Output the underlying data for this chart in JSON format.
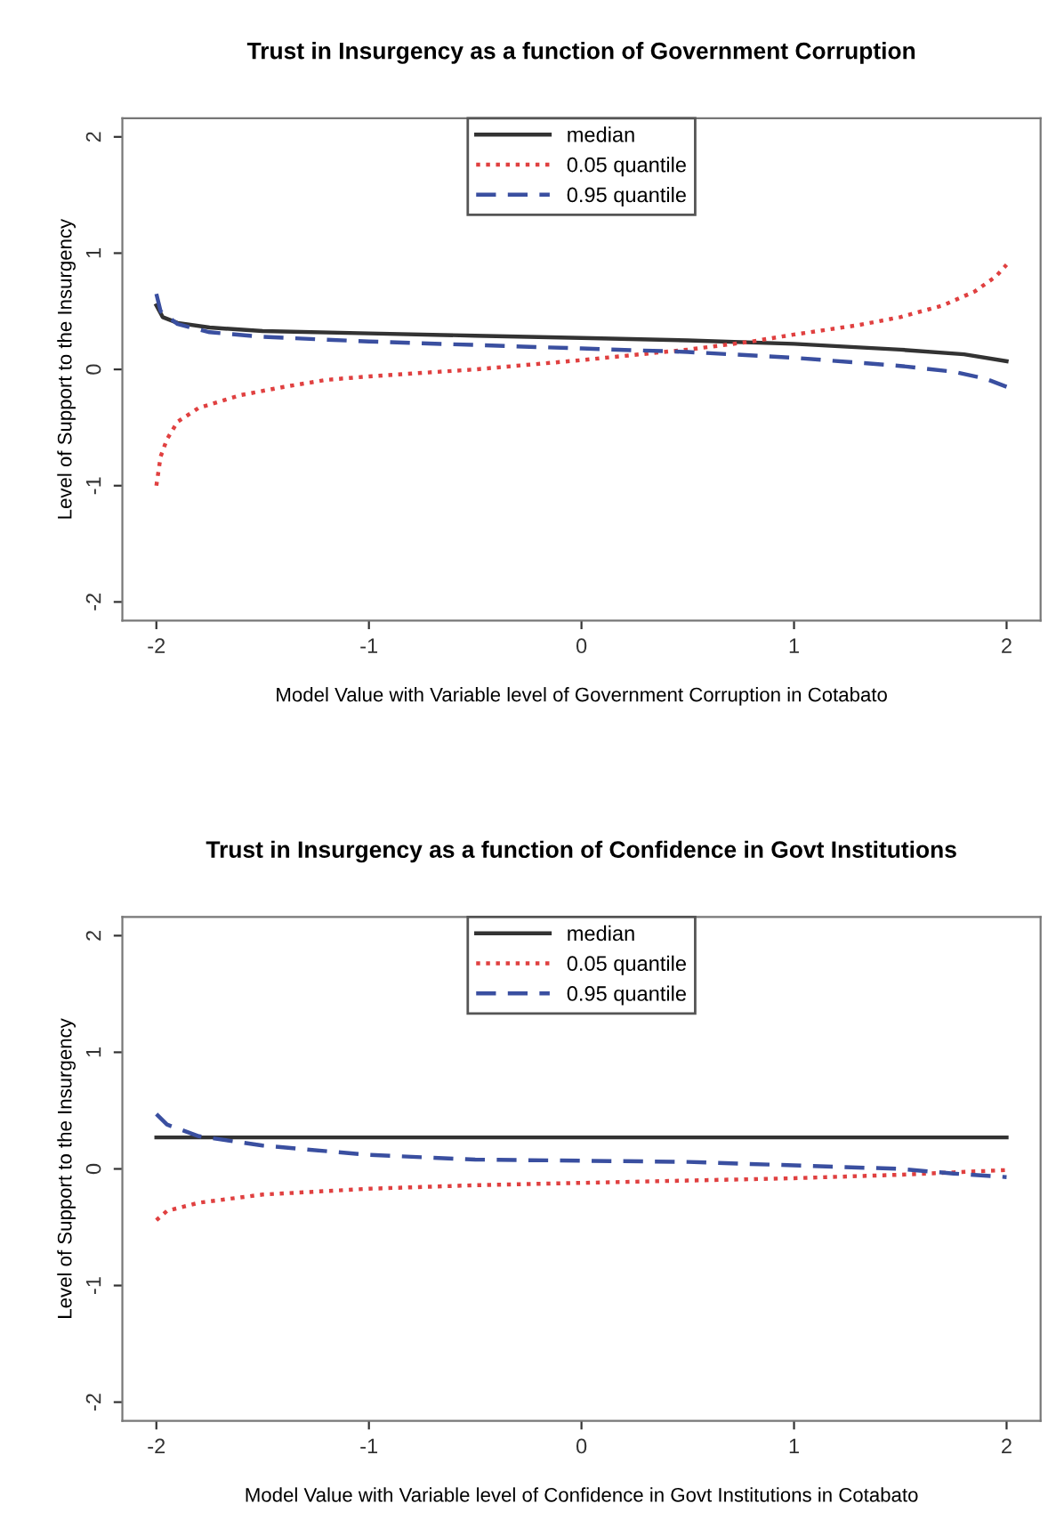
{
  "chart_data": [
    {
      "type": "line",
      "title": "Trust in Insurgency as a function of Government Corruption",
      "xlabel": "Model Value with Variable level of Government Corruption in Cotabato",
      "ylabel": "Level of Support to the Insurgency",
      "xlim": [
        -2.16,
        2.16
      ],
      "ylim": [
        -2.16,
        2.16
      ],
      "xticks": [
        -2,
        -1,
        0,
        1,
        2
      ],
      "yticks": [
        -2,
        -1,
        0,
        1,
        2
      ],
      "grid": false,
      "legend": "top",
      "series": [
        {
          "name": "median",
          "color": "#333333",
          "line_style": "solid",
          "x": [
            -2,
            -1.97,
            -1.9,
            -1.75,
            -1.5,
            -1,
            -0.5,
            0,
            0.5,
            1,
            1.5,
            1.8,
            2
          ],
          "values": [
            0.55,
            0.45,
            0.4,
            0.36,
            0.33,
            0.31,
            0.29,
            0.27,
            0.25,
            0.22,
            0.17,
            0.13,
            0.07
          ]
        },
        {
          "name": "0.05 quantile",
          "color": "#e04040",
          "line_style": "dotted",
          "x": [
            -2,
            -1.98,
            -1.95,
            -1.9,
            -1.8,
            -1.6,
            -1.4,
            -1.2,
            -1,
            -0.5,
            0,
            0.5,
            0.8,
            1,
            1.3,
            1.5,
            1.7,
            1.85,
            1.95,
            2
          ],
          "values": [
            -1.0,
            -0.75,
            -0.6,
            -0.45,
            -0.33,
            -0.22,
            -0.15,
            -0.09,
            -0.06,
            0.0,
            0.08,
            0.17,
            0.24,
            0.3,
            0.38,
            0.45,
            0.55,
            0.67,
            0.8,
            0.9
          ]
        },
        {
          "name": "0.95 quantile",
          "color": "#3a4fa0",
          "line_style": "dashed",
          "x": [
            -2,
            -1.98,
            -1.9,
            -1.75,
            -1.5,
            -1,
            -0.5,
            0,
            0.5,
            1,
            1.5,
            1.75,
            1.9,
            2
          ],
          "values": [
            0.65,
            0.5,
            0.39,
            0.32,
            0.28,
            0.24,
            0.21,
            0.18,
            0.15,
            0.1,
            0.03,
            -0.02,
            -0.08,
            -0.15
          ]
        }
      ]
    },
    {
      "type": "line",
      "title": "Trust in Insurgency as a function of Confidence in Govt Institutions",
      "xlabel": "Model Value with Variable level of Confidence in Govt Institutions in Cotabato",
      "ylabel": "Level of Support to the Insurgency",
      "xlim": [
        -2.16,
        2.16
      ],
      "ylim": [
        -2.16,
        2.16
      ],
      "xticks": [
        -2,
        -1,
        0,
        1,
        2
      ],
      "yticks": [
        -2,
        -1,
        0,
        1,
        2
      ],
      "grid": false,
      "legend": "top",
      "series": [
        {
          "name": "median",
          "color": "#333333",
          "line_style": "solid",
          "x": [
            -2,
            -1,
            0,
            1,
            2
          ],
          "values": [
            0.27,
            0.27,
            0.27,
            0.27,
            0.27
          ]
        },
        {
          "name": "0.05 quantile",
          "color": "#e04040",
          "line_style": "dotted",
          "x": [
            -2,
            -1.95,
            -1.8,
            -1.5,
            -1,
            -0.5,
            0,
            0.5,
            1,
            1.5,
            1.75,
            2
          ],
          "values": [
            -0.44,
            -0.36,
            -0.29,
            -0.22,
            -0.17,
            -0.14,
            -0.12,
            -0.1,
            -0.08,
            -0.05,
            -0.03,
            -0.01
          ]
        },
        {
          "name": "0.95 quantile",
          "color": "#3a4fa0",
          "line_style": "dashed",
          "x": [
            -2,
            -1.95,
            -1.8,
            -1.5,
            -1,
            -0.5,
            0,
            0.5,
            1,
            1.5,
            1.75,
            2
          ],
          "values": [
            0.47,
            0.38,
            0.28,
            0.2,
            0.12,
            0.08,
            0.07,
            0.06,
            0.03,
            0.0,
            -0.04,
            -0.07
          ]
        }
      ]
    }
  ]
}
